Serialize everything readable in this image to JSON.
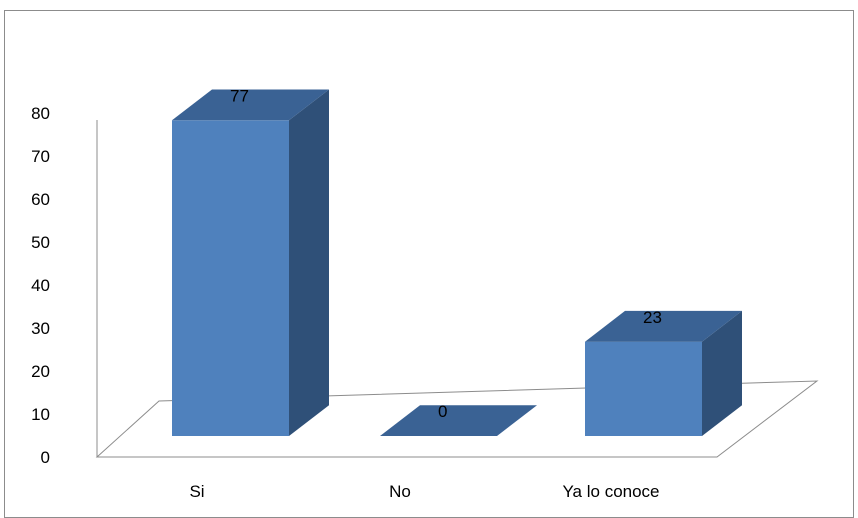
{
  "chart_data": {
    "type": "bar",
    "style": "3d-column",
    "categories": [
      "Si",
      "No",
      "Ya lo conoce"
    ],
    "values": [
      77,
      0,
      23
    ],
    "data_labels": [
      "77",
      "0",
      "23"
    ],
    "title": "",
    "xlabel": "",
    "ylabel": "",
    "ylim": [
      0,
      80
    ],
    "yticks": [
      0,
      10,
      20,
      30,
      40,
      50,
      60,
      70,
      80
    ],
    "grid": false,
    "legend": "none",
    "colors": {
      "front": "#4f81bd",
      "top": "#3a6294",
      "side": "#2f5078",
      "axis": "#8c8c8c"
    }
  }
}
